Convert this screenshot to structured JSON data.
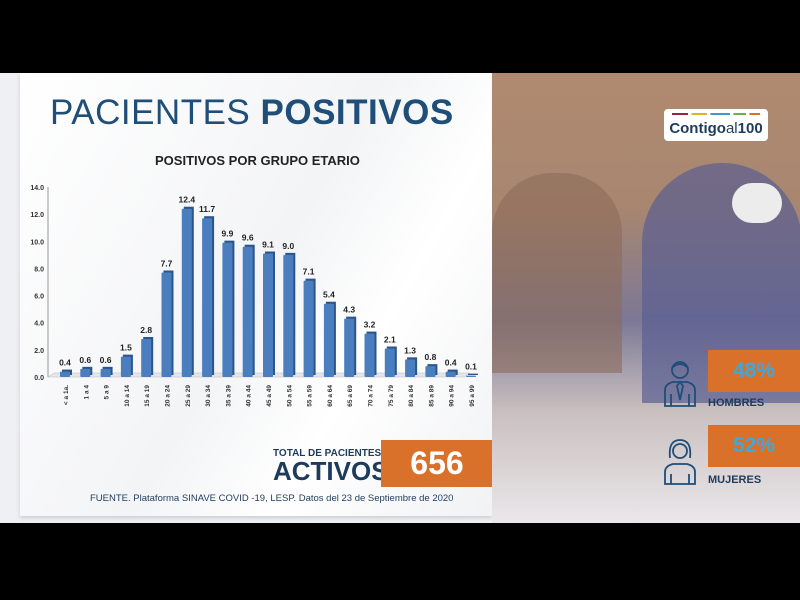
{
  "title": {
    "light": "PACIENTES ",
    "bold": "POSITIVOS"
  },
  "chart_data": {
    "type": "bar",
    "title": "POSITIVOS POR GRUPO ETARIO",
    "categories": [
      "< a 1a.",
      "1 a 4",
      "5 a 9",
      "10 a 14",
      "15 a 19",
      "20 a 24",
      "25 a 29",
      "30 a 34",
      "35 a 39",
      "40 a 44",
      "45 a 49",
      "50 a 54",
      "55 a 59",
      "60 a 64",
      "65 a 69",
      "70 a 74",
      "75 a 79",
      "80 a 84",
      "85 a 89",
      "90 a 94",
      "95 a 99"
    ],
    "values": [
      0.4,
      0.6,
      0.6,
      1.5,
      2.8,
      7.7,
      12.4,
      11.7,
      9.9,
      9.6,
      9.1,
      9.0,
      7.1,
      5.4,
      4.3,
      3.2,
      2.1,
      1.3,
      0.8,
      0.4,
      0.1
    ],
    "ylim": [
      0,
      14
    ],
    "yticks": [
      "0.0",
      "2.0",
      "4.0",
      "6.0",
      "8.0",
      "10.0",
      "12.0",
      "14.0"
    ],
    "bar_color": "#4a7ebf",
    "grid": false,
    "xlabel": "",
    "ylabel": ""
  },
  "total": {
    "label": "TOTAL DE PACIENTES",
    "sublabel": "ACTIVOS",
    "value": "656"
  },
  "source": "FUENTE. Plataforma SINAVE COVID -19, LESP. Datos del 23 de Septiembre de 2020",
  "logo": "Contigo al 100",
  "logo_parts": {
    "a": "Contigo",
    "b": "al",
    "c": "100"
  },
  "gender": [
    {
      "pct": "48%",
      "label": "HOMBRES",
      "icon": "man-icon"
    },
    {
      "pct": "52%",
      "label": "MUJERES",
      "icon": "woman-icon"
    }
  ],
  "colors": {
    "accent": "#d9712b",
    "navy": "#1f4e79",
    "pct_text": "#3fa8d8"
  }
}
